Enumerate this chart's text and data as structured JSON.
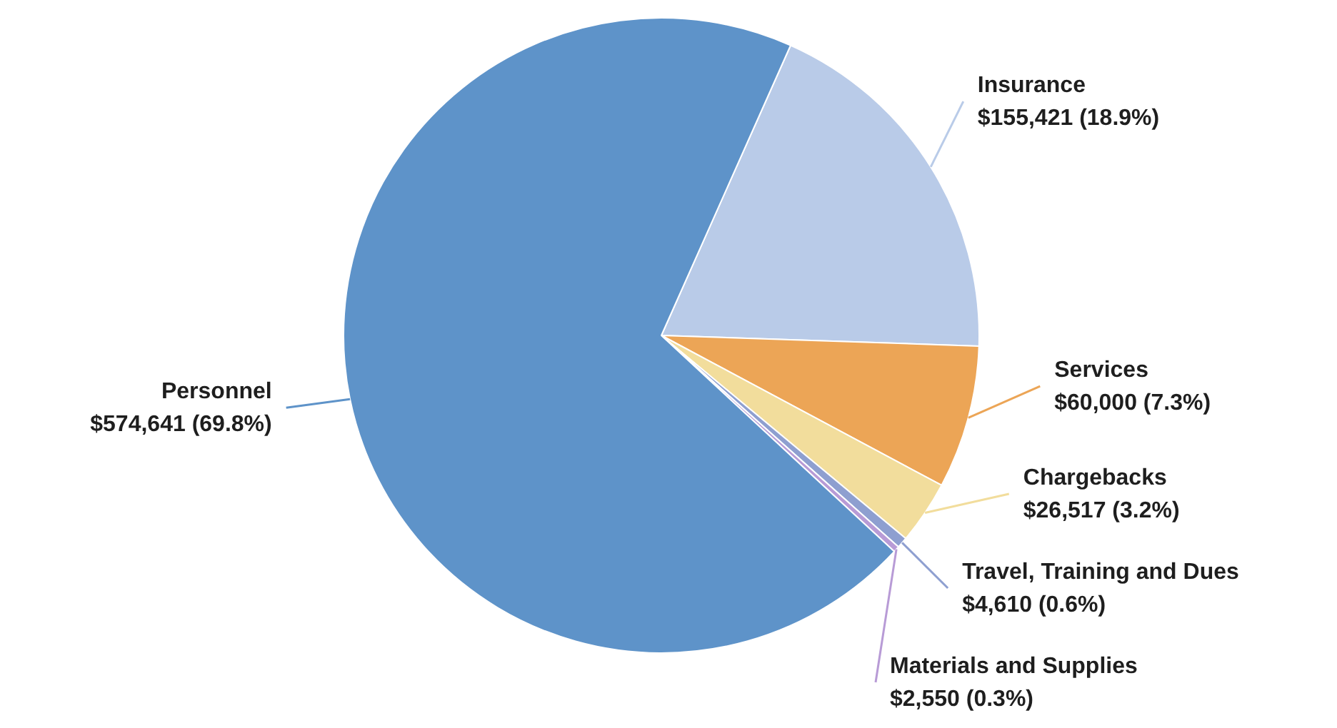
{
  "chart_data": {
    "type": "pie",
    "categories": [
      "Insurance",
      "Services",
      "Chargebacks",
      "Travel, Training and Dues",
      "Materials and Supplies",
      "Personnel"
    ],
    "values": [
      155421,
      60000,
      26517,
      4610,
      2550,
      574641
    ],
    "value_labels": [
      "$155,421 (18.9%)",
      "$60,000 (7.3%)",
      "$26,517 (3.2%)",
      "$4,610 (0.6%)",
      "$2,550 (0.3%)",
      "$574,641 (69.8%)"
    ],
    "colors": [
      "#b9cbe8",
      "#eca556",
      "#f2dd9c",
      "#8e9fd0",
      "#b89bd6",
      "#5e93c9"
    ],
    "legend": false
  }
}
